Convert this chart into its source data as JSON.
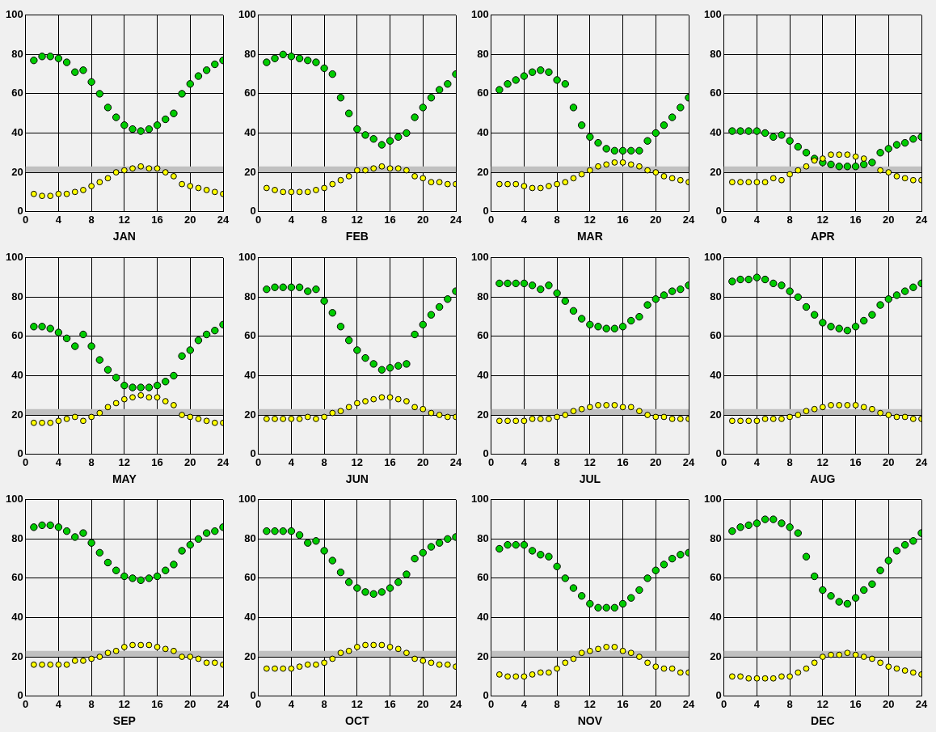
{
  "chart_data": [
    {
      "type": "scatter",
      "xlabel": "JAN",
      "x": [
        1,
        2,
        3,
        4,
        5,
        6,
        7,
        8,
        9,
        10,
        11,
        12,
        13,
        14,
        15,
        16,
        17,
        18,
        19,
        20,
        21,
        22,
        23,
        24
      ],
      "xlim": [
        0,
        24
      ],
      "xticks": [
        0,
        4,
        8,
        12,
        16,
        20,
        24
      ],
      "ylim": [
        0,
        100
      ],
      "yticks": [
        0,
        20,
        40,
        60,
        80,
        100
      ],
      "grid": true,
      "marker": "circle",
      "bands": [
        {
          "axis": "y",
          "from": 20,
          "to": 23,
          "color": "#c0c0c0"
        }
      ],
      "series": [
        {
          "color": "#00cc00",
          "values": [
            77,
            79,
            79,
            78,
            76,
            71,
            72,
            66,
            60,
            53,
            48,
            44,
            42,
            41,
            42,
            44,
            47,
            50,
            60,
            65,
            69,
            72,
            75,
            77
          ]
        },
        {
          "color": "#ffff00",
          "values": [
            9,
            8,
            8,
            9,
            9,
            10,
            11,
            13,
            15,
            17,
            20,
            21,
            22,
            23,
            22,
            22,
            20,
            18,
            14,
            13,
            12,
            11,
            10,
            9
          ]
        }
      ]
    },
    {
      "type": "scatter",
      "xlabel": "FEB",
      "x": [
        1,
        2,
        3,
        4,
        5,
        6,
        7,
        8,
        9,
        10,
        11,
        12,
        13,
        14,
        15,
        16,
        17,
        18,
        19,
        20,
        21,
        22,
        23,
        24
      ],
      "xlim": [
        0,
        24
      ],
      "xticks": [
        0,
        4,
        8,
        12,
        16,
        20,
        24
      ],
      "ylim": [
        0,
        100
      ],
      "yticks": [
        0,
        20,
        40,
        60,
        80,
        100
      ],
      "grid": true,
      "marker": "circle",
      "bands": [
        {
          "axis": "y",
          "from": 20,
          "to": 23,
          "color": "#c0c0c0"
        }
      ],
      "series": [
        {
          "color": "#00cc00",
          "values": [
            76,
            78,
            80,
            79,
            78,
            77,
            76,
            73,
            70,
            58,
            50,
            42,
            39,
            37,
            34,
            36,
            38,
            40,
            48,
            53,
            58,
            62,
            65,
            70
          ]
        },
        {
          "color": "#ffff00",
          "values": [
            12,
            11,
            10,
            10,
            10,
            10,
            11,
            12,
            14,
            16,
            18,
            21,
            21,
            22,
            23,
            22,
            22,
            21,
            18,
            17,
            15,
            15,
            14,
            14
          ]
        }
      ]
    },
    {
      "type": "scatter",
      "xlabel": "MAR",
      "x": [
        1,
        2,
        3,
        4,
        5,
        6,
        7,
        8,
        9,
        10,
        11,
        12,
        13,
        14,
        15,
        16,
        17,
        18,
        19,
        20,
        21,
        22,
        23,
        24
      ],
      "xlim": [
        0,
        24
      ],
      "xticks": [
        0,
        4,
        8,
        12,
        16,
        20,
        24
      ],
      "ylim": [
        0,
        100
      ],
      "yticks": [
        0,
        20,
        40,
        60,
        80,
        100
      ],
      "grid": true,
      "marker": "circle",
      "bands": [
        {
          "axis": "y",
          "from": 20,
          "to": 23,
          "color": "#c0c0c0"
        }
      ],
      "series": [
        {
          "color": "#00cc00",
          "values": [
            62,
            65,
            67,
            69,
            71,
            72,
            71,
            67,
            65,
            53,
            44,
            38,
            35,
            32,
            31,
            31,
            31,
            31,
            36,
            40,
            44,
            48,
            53,
            58
          ]
        },
        {
          "color": "#ffff00",
          "values": [
            14,
            14,
            14,
            13,
            12,
            12,
            13,
            14,
            15,
            17,
            19,
            21,
            23,
            24,
            25,
            25,
            24,
            23,
            21,
            20,
            18,
            17,
            16,
            15
          ]
        }
      ]
    },
    {
      "type": "scatter",
      "xlabel": "APR",
      "x": [
        1,
        2,
        3,
        4,
        5,
        6,
        7,
        8,
        9,
        10,
        11,
        12,
        13,
        14,
        15,
        16,
        17,
        18,
        19,
        20,
        21,
        22,
        23,
        24
      ],
      "xlim": [
        0,
        24
      ],
      "xticks": [
        0,
        4,
        8,
        12,
        16,
        20,
        24
      ],
      "ylim": [
        0,
        100
      ],
      "yticks": [
        0,
        20,
        40,
        60,
        80,
        100
      ],
      "grid": true,
      "marker": "circle",
      "bands": [
        {
          "axis": "y",
          "from": 20,
          "to": 23,
          "color": "#c0c0c0"
        }
      ],
      "series": [
        {
          "color": "#00cc00",
          "values": [
            41,
            41,
            41,
            41,
            40,
            38,
            39,
            36,
            33,
            30,
            27,
            25,
            24,
            23,
            23,
            23,
            24,
            25,
            30,
            32,
            34,
            35,
            37,
            38
          ]
        },
        {
          "color": "#ffff00",
          "values": [
            15,
            15,
            15,
            15,
            15,
            17,
            16,
            19,
            21,
            23,
            26,
            27,
            29,
            29,
            29,
            28,
            27,
            null,
            21,
            20,
            18,
            17,
            16,
            16
          ]
        }
      ]
    },
    {
      "type": "scatter",
      "xlabel": "MAY",
      "x": [
        1,
        2,
        3,
        4,
        5,
        6,
        7,
        8,
        9,
        10,
        11,
        12,
        13,
        14,
        15,
        16,
        17,
        18,
        19,
        20,
        21,
        22,
        23,
        24
      ],
      "xlim": [
        0,
        24
      ],
      "xticks": [
        0,
        4,
        8,
        12,
        16,
        20,
        24
      ],
      "ylim": [
        0,
        100
      ],
      "yticks": [
        0,
        20,
        40,
        60,
        80,
        100
      ],
      "grid": true,
      "marker": "circle",
      "bands": [
        {
          "axis": "y",
          "from": 20,
          "to": 23,
          "color": "#c0c0c0"
        }
      ],
      "series": [
        {
          "color": "#00cc00",
          "values": [
            65,
            65,
            64,
            62,
            59,
            55,
            61,
            55,
            48,
            43,
            39,
            35,
            34,
            34,
            34,
            35,
            37,
            40,
            50,
            53,
            58,
            61,
            63,
            66
          ]
        },
        {
          "color": "#ffff00",
          "values": [
            16,
            16,
            16,
            17,
            18,
            19,
            17,
            19,
            21,
            24,
            26,
            28,
            29,
            30,
            29,
            29,
            27,
            25,
            20,
            19,
            18,
            17,
            16,
            16
          ]
        }
      ]
    },
    {
      "type": "scatter",
      "xlabel": "JUN",
      "x": [
        1,
        2,
        3,
        4,
        5,
        6,
        7,
        8,
        9,
        10,
        11,
        12,
        13,
        14,
        15,
        16,
        17,
        18,
        19,
        20,
        21,
        22,
        23,
        24
      ],
      "xlim": [
        0,
        24
      ],
      "xticks": [
        0,
        4,
        8,
        12,
        16,
        20,
        24
      ],
      "ylim": [
        0,
        100
      ],
      "yticks": [
        0,
        20,
        40,
        60,
        80,
        100
      ],
      "grid": true,
      "marker": "circle",
      "bands": [
        {
          "axis": "y",
          "from": 20,
          "to": 23,
          "color": "#c0c0c0"
        }
      ],
      "series": [
        {
          "color": "#00cc00",
          "values": [
            84,
            85,
            85,
            85,
            85,
            83,
            84,
            78,
            72,
            65,
            58,
            53,
            49,
            46,
            43,
            44,
            45,
            46,
            61,
            66,
            71,
            75,
            79,
            83
          ]
        },
        {
          "color": "#ffff00",
          "values": [
            18,
            18,
            18,
            18,
            18,
            19,
            18,
            19,
            21,
            22,
            24,
            26,
            27,
            28,
            29,
            29,
            28,
            27,
            24,
            23,
            21,
            20,
            19,
            19
          ]
        }
      ]
    },
    {
      "type": "scatter",
      "xlabel": "JUL",
      "x": [
        1,
        2,
        3,
        4,
        5,
        6,
        7,
        8,
        9,
        10,
        11,
        12,
        13,
        14,
        15,
        16,
        17,
        18,
        19,
        20,
        21,
        22,
        23,
        24
      ],
      "xlim": [
        0,
        24
      ],
      "xticks": [
        0,
        4,
        8,
        12,
        16,
        20,
        24
      ],
      "ylim": [
        0,
        100
      ],
      "yticks": [
        0,
        20,
        40,
        60,
        80,
        100
      ],
      "grid": true,
      "marker": "circle",
      "bands": [
        {
          "axis": "y",
          "from": 20,
          "to": 23,
          "color": "#c0c0c0"
        }
      ],
      "series": [
        {
          "color": "#00cc00",
          "values": [
            87,
            87,
            87,
            87,
            86,
            84,
            86,
            82,
            78,
            73,
            69,
            66,
            65,
            64,
            64,
            65,
            68,
            70,
            76,
            79,
            81,
            83,
            84,
            86
          ]
        },
        {
          "color": "#ffff00",
          "values": [
            17,
            17,
            17,
            17,
            18,
            18,
            18,
            19,
            20,
            22,
            23,
            24,
            25,
            25,
            25,
            24,
            24,
            22,
            20,
            19,
            19,
            18,
            18,
            18
          ]
        }
      ]
    },
    {
      "type": "scatter",
      "xlabel": "AUG",
      "x": [
        1,
        2,
        3,
        4,
        5,
        6,
        7,
        8,
        9,
        10,
        11,
        12,
        13,
        14,
        15,
        16,
        17,
        18,
        19,
        20,
        21,
        22,
        23,
        24
      ],
      "xlim": [
        0,
        24
      ],
      "xticks": [
        0,
        4,
        8,
        12,
        16,
        20,
        24
      ],
      "ylim": [
        0,
        100
      ],
      "yticks": [
        0,
        20,
        40,
        60,
        80,
        100
      ],
      "grid": true,
      "marker": "circle",
      "bands": [
        {
          "axis": "y",
          "from": 20,
          "to": 23,
          "color": "#c0c0c0"
        }
      ],
      "series": [
        {
          "color": "#00cc00",
          "values": [
            88,
            89,
            89,
            90,
            89,
            87,
            86,
            83,
            80,
            75,
            71,
            67,
            65,
            64,
            63,
            65,
            68,
            71,
            76,
            79,
            81,
            83,
            85,
            87
          ]
        },
        {
          "color": "#ffff00",
          "values": [
            17,
            17,
            17,
            17,
            18,
            18,
            18,
            19,
            20,
            22,
            23,
            24,
            25,
            25,
            25,
            25,
            24,
            23,
            21,
            20,
            19,
            19,
            18,
            18
          ]
        }
      ]
    },
    {
      "type": "scatter",
      "xlabel": "SEP",
      "x": [
        1,
        2,
        3,
        4,
        5,
        6,
        7,
        8,
        9,
        10,
        11,
        12,
        13,
        14,
        15,
        16,
        17,
        18,
        19,
        20,
        21,
        22,
        23,
        24
      ],
      "xlim": [
        0,
        24
      ],
      "xticks": [
        0,
        4,
        8,
        12,
        16,
        20,
        24
      ],
      "ylim": [
        0,
        100
      ],
      "yticks": [
        0,
        20,
        40,
        60,
        80,
        100
      ],
      "grid": true,
      "marker": "circle",
      "bands": [
        {
          "axis": "y",
          "from": 20,
          "to": 23,
          "color": "#c0c0c0"
        }
      ],
      "series": [
        {
          "color": "#00cc00",
          "values": [
            86,
            87,
            87,
            86,
            84,
            81,
            83,
            78,
            73,
            68,
            64,
            61,
            60,
            59,
            60,
            61,
            64,
            67,
            74,
            77,
            80,
            83,
            84,
            86
          ]
        },
        {
          "color": "#ffff00",
          "values": [
            16,
            16,
            16,
            16,
            16,
            18,
            18,
            19,
            20,
            22,
            23,
            25,
            26,
            26,
            26,
            25,
            24,
            23,
            20,
            20,
            19,
            17,
            17,
            16
          ]
        }
      ]
    },
    {
      "type": "scatter",
      "xlabel": "OCT",
      "x": [
        1,
        2,
        3,
        4,
        5,
        6,
        7,
        8,
        9,
        10,
        11,
        12,
        13,
        14,
        15,
        16,
        17,
        18,
        19,
        20,
        21,
        22,
        23,
        24
      ],
      "xlim": [
        0,
        24
      ],
      "xticks": [
        0,
        4,
        8,
        12,
        16,
        20,
        24
      ],
      "ylim": [
        0,
        100
      ],
      "yticks": [
        0,
        20,
        40,
        60,
        80,
        100
      ],
      "grid": true,
      "marker": "circle",
      "bands": [
        {
          "axis": "y",
          "from": 20,
          "to": 23,
          "color": "#c0c0c0"
        }
      ],
      "series": [
        {
          "color": "#00cc00",
          "values": [
            84,
            84,
            84,
            84,
            82,
            78,
            79,
            74,
            69,
            63,
            58,
            55,
            53,
            52,
            53,
            55,
            58,
            62,
            70,
            73,
            76,
            78,
            80,
            81
          ]
        },
        {
          "color": "#ffff00",
          "values": [
            14,
            14,
            14,
            14,
            15,
            16,
            16,
            17,
            19,
            22,
            23,
            25,
            26,
            26,
            26,
            25,
            24,
            22,
            19,
            18,
            17,
            16,
            16,
            15
          ]
        }
      ]
    },
    {
      "type": "scatter",
      "xlabel": "NOV",
      "x": [
        1,
        2,
        3,
        4,
        5,
        6,
        7,
        8,
        9,
        10,
        11,
        12,
        13,
        14,
        15,
        16,
        17,
        18,
        19,
        20,
        21,
        22,
        23,
        24
      ],
      "xlim": [
        0,
        24
      ],
      "xticks": [
        0,
        4,
        8,
        12,
        16,
        20,
        24
      ],
      "ylim": [
        0,
        100
      ],
      "yticks": [
        0,
        20,
        40,
        60,
        80,
        100
      ],
      "grid": true,
      "marker": "circle",
      "bands": [
        {
          "axis": "y",
          "from": 20,
          "to": 23,
          "color": "#c0c0c0"
        }
      ],
      "series": [
        {
          "color": "#00cc00",
          "values": [
            75,
            77,
            77,
            77,
            74,
            72,
            71,
            66,
            60,
            55,
            51,
            47,
            45,
            45,
            45,
            47,
            50,
            54,
            60,
            64,
            67,
            70,
            72,
            73
          ]
        },
        {
          "color": "#ffff00",
          "values": [
            11,
            10,
            10,
            10,
            11,
            12,
            12,
            14,
            17,
            19,
            22,
            23,
            24,
            25,
            25,
            23,
            22,
            20,
            17,
            15,
            14,
            14,
            12,
            12
          ]
        }
      ]
    },
    {
      "type": "scatter",
      "xlabel": "DEC",
      "x": [
        1,
        2,
        3,
        4,
        5,
        6,
        7,
        8,
        9,
        10,
        11,
        12,
        13,
        14,
        15,
        16,
        17,
        18,
        19,
        20,
        21,
        22,
        23,
        24
      ],
      "xlim": [
        0,
        24
      ],
      "xticks": [
        0,
        4,
        8,
        12,
        16,
        20,
        24
      ],
      "ylim": [
        0,
        100
      ],
      "yticks": [
        0,
        20,
        40,
        60,
        80,
        100
      ],
      "grid": true,
      "marker": "circle",
      "bands": [
        {
          "axis": "y",
          "from": 20,
          "to": 23,
          "color": "#c0c0c0"
        }
      ],
      "series": [
        {
          "color": "#00cc00",
          "values": [
            84,
            86,
            87,
            88,
            90,
            90,
            88,
            86,
            83,
            71,
            61,
            54,
            51,
            48,
            47,
            50,
            54,
            57,
            64,
            69,
            74,
            77,
            79,
            83
          ]
        },
        {
          "color": "#ffff00",
          "values": [
            10,
            10,
            9,
            9,
            9,
            9,
            10,
            10,
            12,
            14,
            17,
            20,
            21,
            21,
            22,
            21,
            20,
            19,
            17,
            15,
            14,
            13,
            12,
            11
          ]
        }
      ]
    }
  ]
}
